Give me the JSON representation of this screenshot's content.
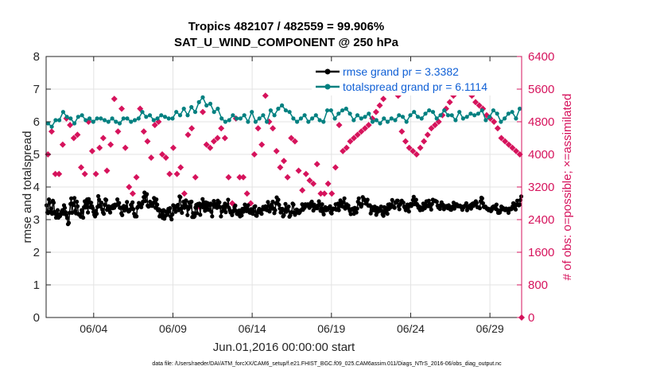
{
  "chart_data": {
    "type": "line",
    "title": "Tropics 482107 / 482559 = 99.906%",
    "subtitle": "SAT_U_WIND_COMPONENT @ 250 hPa",
    "xlabel": "Jun.01,2016 00:00:00 start",
    "ylabel_left": "rmse and totalspread",
    "ylabel_right": "# of obs: o=possible; ×=assimilated",
    "footer": "data file: /Users/raeder/DAI/ATM_forcXX/CAM6_setup/f.e21.FHIST_BGC.f09_025.CAM6assim.011/Diags_NTrS_2016-06/obs_diag_output.nc",
    "x_range": [
      1.0,
      31.0
    ],
    "ylim_left": [
      0,
      8
    ],
    "ylim_right": [
      0,
      6400
    ],
    "x_ticks": [
      {
        "value": 4,
        "label": "06/04"
      },
      {
        "value": 9,
        "label": "06/09"
      },
      {
        "value": 14,
        "label": "06/14"
      },
      {
        "value": 19,
        "label": "06/19"
      },
      {
        "value": 24,
        "label": "06/24"
      },
      {
        "value": 29,
        "label": "06/29"
      }
    ],
    "yticks_left": [
      "0",
      "1",
      "2",
      "3",
      "4",
      "5",
      "6",
      "7",
      "8"
    ],
    "yticks_right": [
      "0",
      "800",
      "1600",
      "2400",
      "3200",
      "4000",
      "4800",
      "5600",
      "6400"
    ],
    "legend": [
      {
        "label": "rmse grand pr = 3.3382",
        "color": "#000000"
      },
      {
        "label": "totalspread grand pr = 6.1114",
        "color": "#008080"
      }
    ],
    "series": [
      {
        "name": "rmse",
        "axis": "left",
        "color": "#000000",
        "values": [
          3.44,
          3.22,
          3.2,
          3.62,
          3.52,
          3.25,
          3.34,
          3.18,
          3.58,
          3.52,
          3.24,
          3.18,
          3.06,
          3.12,
          3.29,
          3.06,
          3.16,
          3.11,
          3.18,
          3.25,
          3.29,
          3.18,
          3.44,
          3.36,
          3.23,
          3.14,
          3.05,
          2.86,
          2.9,
          3.21,
          3.48,
          3.65,
          3.21,
          3.49,
          3.45,
          3.66,
          3.27,
          3.19,
          3.55,
          3.41,
          3.17,
          3.15,
          3.17,
          3.09,
          3.29,
          3.24,
          3.06,
          3.38,
          3.56,
          3.37,
          3.45,
          3.62,
          3.22,
          3.63,
          3.54,
          3.38,
          3.52,
          3.41,
          3.35,
          3.24,
          3.15,
          3.1,
          3.27,
          3.18,
          3.39,
          3.72,
          3.61,
          3.44,
          3.4,
          3.52,
          3.31,
          3.22,
          3.18,
          3.45,
          3.62,
          3.6,
          3.3,
          3.37,
          3.41,
          3.28,
          3.22,
          3.38,
          3.4,
          3.35,
          3.44,
          3.36,
          3.46,
          3.43,
          3.45,
          3.62,
          3.46,
          3.51,
          3.36,
          3.37,
          3.19,
          3.14,
          3.35,
          3.42,
          3.28,
          3.4,
          3.38,
          3.54,
          3.3,
          3.25,
          3.27,
          3.31,
          3.45,
          3.35,
          3.53,
          3.32,
          3.18,
          3.1,
          3.11,
          3.1,
          3.36,
          3.4,
          3.51,
          3.45,
          3.41,
          3.38,
          3.48,
          3.55,
          3.69,
          3.83,
          3.57,
          3.74,
          3.78,
          3.43,
          3.4,
          3.42,
          3.55,
          3.43,
          3.51,
          3.42,
          3.51,
          3.66,
          3.55,
          3.36,
          3.62,
          3.46,
          3.29,
          3.32,
          3.1,
          3.14,
          3.27,
          3.25,
          3.05,
          3.29,
          3.03,
          3.11,
          3.25,
          3.2,
          3.15,
          3.33,
          3.25,
          3.35,
          3.09,
          3.01,
          3.16,
          3.44,
          3.41,
          3.31,
          3.24,
          3.42,
          3.39,
          3.45,
          3.29,
          3.71,
          3.69,
          3.34,
          3.21,
          3.41,
          3.55,
          3.36,
          3.44,
          3.59,
          3.4,
          3.14,
          3.33,
          3.53,
          3.39,
          3.54,
          3.55,
          3.08,
          3.2,
          3.08,
          3.11,
          3.37,
          3.45,
          3.2,
          3.48,
          3.44,
          3.49,
          3.15,
          3.39,
          3.45,
          3.63,
          3.37,
          3.53,
          3.27,
          3.53,
          3.37,
          3.51,
          3.3,
          3.31,
          3.44,
          3.49,
          3.24,
          3.1,
          3.45,
          3.57,
          3.39,
          3.43,
          3.48,
          3.36,
          3.58,
          3.4,
          3.53,
          3.38,
          3.1,
          3.25,
          3.38,
          3.4,
          3.32,
          3.49,
          3.23,
          3.44,
          3.44,
          3.61,
          3.36,
          3.29,
          3.22,
          3.23,
          3.14,
          3.24,
          3.28,
          3.38,
          3.43,
          3.27,
          3.18,
          3.17,
          3.19,
          3.28,
          3.1,
          3.22,
          3.13,
          3.33,
          3.24,
          3.34,
          3.46,
          3.3,
          3.26,
          3.36,
          3.44,
          3.27,
          3.22,
          3.21,
          3.32,
          3.3,
          3.18,
          3.25,
          3.39,
          3.41,
          3.13,
          3.12,
          3.21,
          3.27,
          3.33,
          3.31,
          3.21,
          3.18,
          3.31,
          3.39,
          3.38,
          3.32,
          3.41,
          3.3,
          3.29,
          3.54,
          3.41,
          3.25,
          3.42,
          3.45,
          3.34,
          3.55,
          3.34,
          3.2,
          3.29,
          3.5,
          3.68,
          3.5,
          3.61,
          3.45,
          3.34,
          3.22,
          3.28,
          3.33,
          3.1,
          3.14,
          3.28,
          3.48,
          3.24,
          3.36,
          3.29,
          3.4,
          3.09,
          3.13,
          3.22,
          3.23,
          3.49,
          3.46,
          3.21,
          3.15,
          3.2,
          3.31,
          3.29,
          3.27,
          3.2,
          3.23,
          3.28,
          3.3,
          3.47,
          3.3,
          3.38,
          3.36,
          3.47,
          3.46,
          3.43,
          3.47,
          3.41,
          3.36,
          3.4,
          3.51,
          3.55,
          3.42,
          3.28,
          3.46,
          3.41,
          3.35,
          3.4,
          3.35,
          3.44,
          3.56,
          3.47,
          3.27,
          3.35,
          3.47,
          3.24,
          3.16,
          3.34,
          3.38,
          3.29,
          3.31,
          3.3,
          3.36,
          3.35,
          3.41,
          3.22,
          3.19,
          3.3,
          3.34,
          3.33,
          3.33,
          3.47,
          3.3,
          3.31,
          3.49,
          3.29,
          3.41,
          3.59,
          3.42,
          3.5,
          3.4,
          3.54,
          3.65,
          3.34,
          3.39,
          3.47,
          3.4,
          3.43,
          3.33,
          3.26,
          3.17,
          3.32,
          3.3,
          3.34,
          3.18,
          3.36,
          3.32,
          3.22,
          3.34,
          3.55,
          3.65,
          3.49,
          3.46,
          3.4,
          3.47,
          3.69,
          3.61,
          3.62,
          3.58,
          3.49,
          3.57,
          3.61,
          3.43,
          3.43,
          3.44,
          3.19,
          3.27,
          3.38,
          3.34,
          3.29,
          3.4,
          3.27,
          3.15,
          3.36,
          3.24,
          3.27,
          3.33,
          3.27,
          3.4,
          3.27,
          3.16,
          3.12,
          3.38,
          3.22,
          3.36,
          3.27,
          3.18,
          3.46,
          3.33,
          3.47,
          3.38,
          3.39,
          3.6,
          3.42,
          3.4,
          3.36,
          3.53,
          3.52,
          3.58,
          3.58,
          3.41,
          3.32,
          3.46,
          3.5,
          3.58,
          3.53,
          3.52,
          3.4,
          3.36,
          3.29,
          3.3,
          3.46,
          3.39,
          3.25,
          3.43,
          3.48,
          3.42,
          3.48,
          3.6,
          3.7,
          3.47,
          3.5,
          3.61,
          3.48,
          3.43,
          3.36,
          3.4,
          3.29,
          3.32,
          3.37,
          3.3,
          3.49,
          3.35,
          3.35,
          3.46,
          3.56,
          3.43,
          3.41,
          3.58,
          3.48,
          3.4,
          3.31,
          3.48,
          3.61,
          3.59,
          3.57,
          3.58,
          3.56,
          3.55,
          3.43,
          3.37,
          3.43,
          3.33,
          3.43,
          3.53,
          3.42,
          3.45,
          3.32,
          3.38,
          3.37,
          3.42,
          3.39,
          3.35,
          3.44,
          3.36,
          3.31,
          3.3,
          3.39,
          3.4,
          3.52,
          3.34,
          3.44,
          3.47,
          3.47,
          3.41,
          3.41,
          3.41,
          3.43,
          3.41,
          3.37,
          3.3,
          3.4,
          3.38,
          3.42,
          3.44,
          3.5,
          3.29,
          3.37,
          3.4,
          3.41,
          3.44,
          3.34,
          3.47,
          3.49,
          3.42,
          3.51,
          3.47,
          3.56,
          3.51,
          3.38,
          3.38,
          3.37,
          3.35,
          3.56,
          3.67,
          3.65,
          3.5,
          3.39,
          3.38,
          3.4,
          3.36,
          3.33,
          3.34,
          3.29,
          3.32,
          3.32,
          3.26,
          3.3,
          3.38,
          3.4,
          3.41,
          3.37,
          3.33,
          3.46,
          3.3,
          3.21,
          3.21,
          3.22,
          3.29,
          3.4,
          3.32,
          3.36,
          3.32,
          3.3,
          3.29,
          3.34,
          3.31,
          3.3,
          3.21,
          3.34,
          3.31,
          3.32,
          3.33,
          3.4,
          3.5,
          3.49,
          3.37,
          3.31,
          3.45,
          3.58,
          3.47,
          3.44,
          3.46,
          3.6,
          3.71
        ]
      },
      {
        "name": "totalspread",
        "axis": "left",
        "color": "#008080",
        "values": [
          5.95,
          5.85,
          6.05,
          6.05,
          6.3,
          6.15,
          6.1,
          5.95,
          6.15,
          6.2,
          6.05,
          6.1,
          6.0,
          6.1,
          6.1,
          6.05,
          6.0,
          6.1,
          6.0,
          5.95,
          6.1,
          6.1,
          6.0,
          6.05,
          6.1,
          6.3,
          6.15,
          6.2,
          6.05,
          6.1,
          6.2,
          6.15,
          6.1,
          6.1,
          6.3,
          6.2,
          6.4,
          6.2,
          6.45,
          6.3,
          6.6,
          6.75,
          6.5,
          6.55,
          6.3,
          6.4,
          6.1,
          6.0,
          6.05,
          6.2,
          6.1,
          6.1,
          6.2,
          6.0,
          6.3,
          6.0,
          6.1,
          6.2,
          6.0,
          6.35,
          6.2,
          6.4,
          6.5,
          6.35,
          6.3,
          6.1,
          6.0,
          6.1,
          6.2,
          6.0,
          6.1,
          6.2,
          6.05,
          6.0,
          6.35,
          6.35,
          6.1,
          6.25,
          6.35,
          6.4,
          6.25,
          6.05,
          6.2,
          6.1,
          6.15,
          6.25,
          6.0,
          6.05,
          5.95,
          6.1,
          6.0,
          6.1,
          6.05,
          6.2,
          6.15,
          6.0,
          6.2,
          6.3,
          6.15,
          6.1,
          6.25,
          6.35,
          6.3,
          6.1,
          6.2,
          6.35,
          6.2,
          6.2,
          6.05,
          6.3,
          6.1,
          6.15,
          6.25,
          6.2,
          6.25,
          6.35,
          6.05,
          6.15,
          6.35,
          6.25,
          6.0,
          6.1,
          6.25,
          6.3,
          6.1,
          6.4
        ]
      }
    ],
    "possible_obs": [
      4000,
      4560,
      3520,
      3520,
      4240,
      4880,
      4720,
      4400,
      4480,
      3680,
      3520,
      4800,
      4080,
      3520,
      4160,
      4400,
      3600,
      4240,
      5360,
      4560,
      5120,
      4160,
      3200,
      3040,
      3440,
      5120,
      4560,
      4320,
      3920,
      4720,
      4800,
      4000,
      3920,
      3520,
      4160,
      3520,
      3680,
      3040,
      4480,
      4640,
      3440,
      2720,
      5040,
      4240,
      4160,
      4320,
      4400,
      4640,
      4400,
      3440,
      2800,
      4880,
      3440,
      3440,
      3040,
      2800,
      4000,
      4640,
      4240,
      5440,
      4800,
      4640,
      4080,
      3680,
      3840,
      3440,
      4400,
      4320,
      3600,
      3120,
      3520,
      3360,
      3280,
      3760,
      3040,
      3040,
      3280,
      3040,
      3680,
      4720,
      4080,
      4160,
      4320,
      4400,
      4480,
      4560,
      4640,
      4720,
      4880,
      5040,
      5200,
      5360,
      5520,
      5760,
      5680,
      5440,
      4560,
      4320,
      4160,
      4080,
      4000,
      4160,
      4320,
      4480,
      4640,
      4720,
      4800,
      4960,
      5120,
      5280,
      5440,
      5600,
      5920,
      5840,
      5680,
      5440,
      5280,
      5200,
      5120,
      4960,
      4880,
      4800,
      4640,
      4400,
      4320,
      4240,
      4160,
      4080,
      4000
    ]
  }
}
